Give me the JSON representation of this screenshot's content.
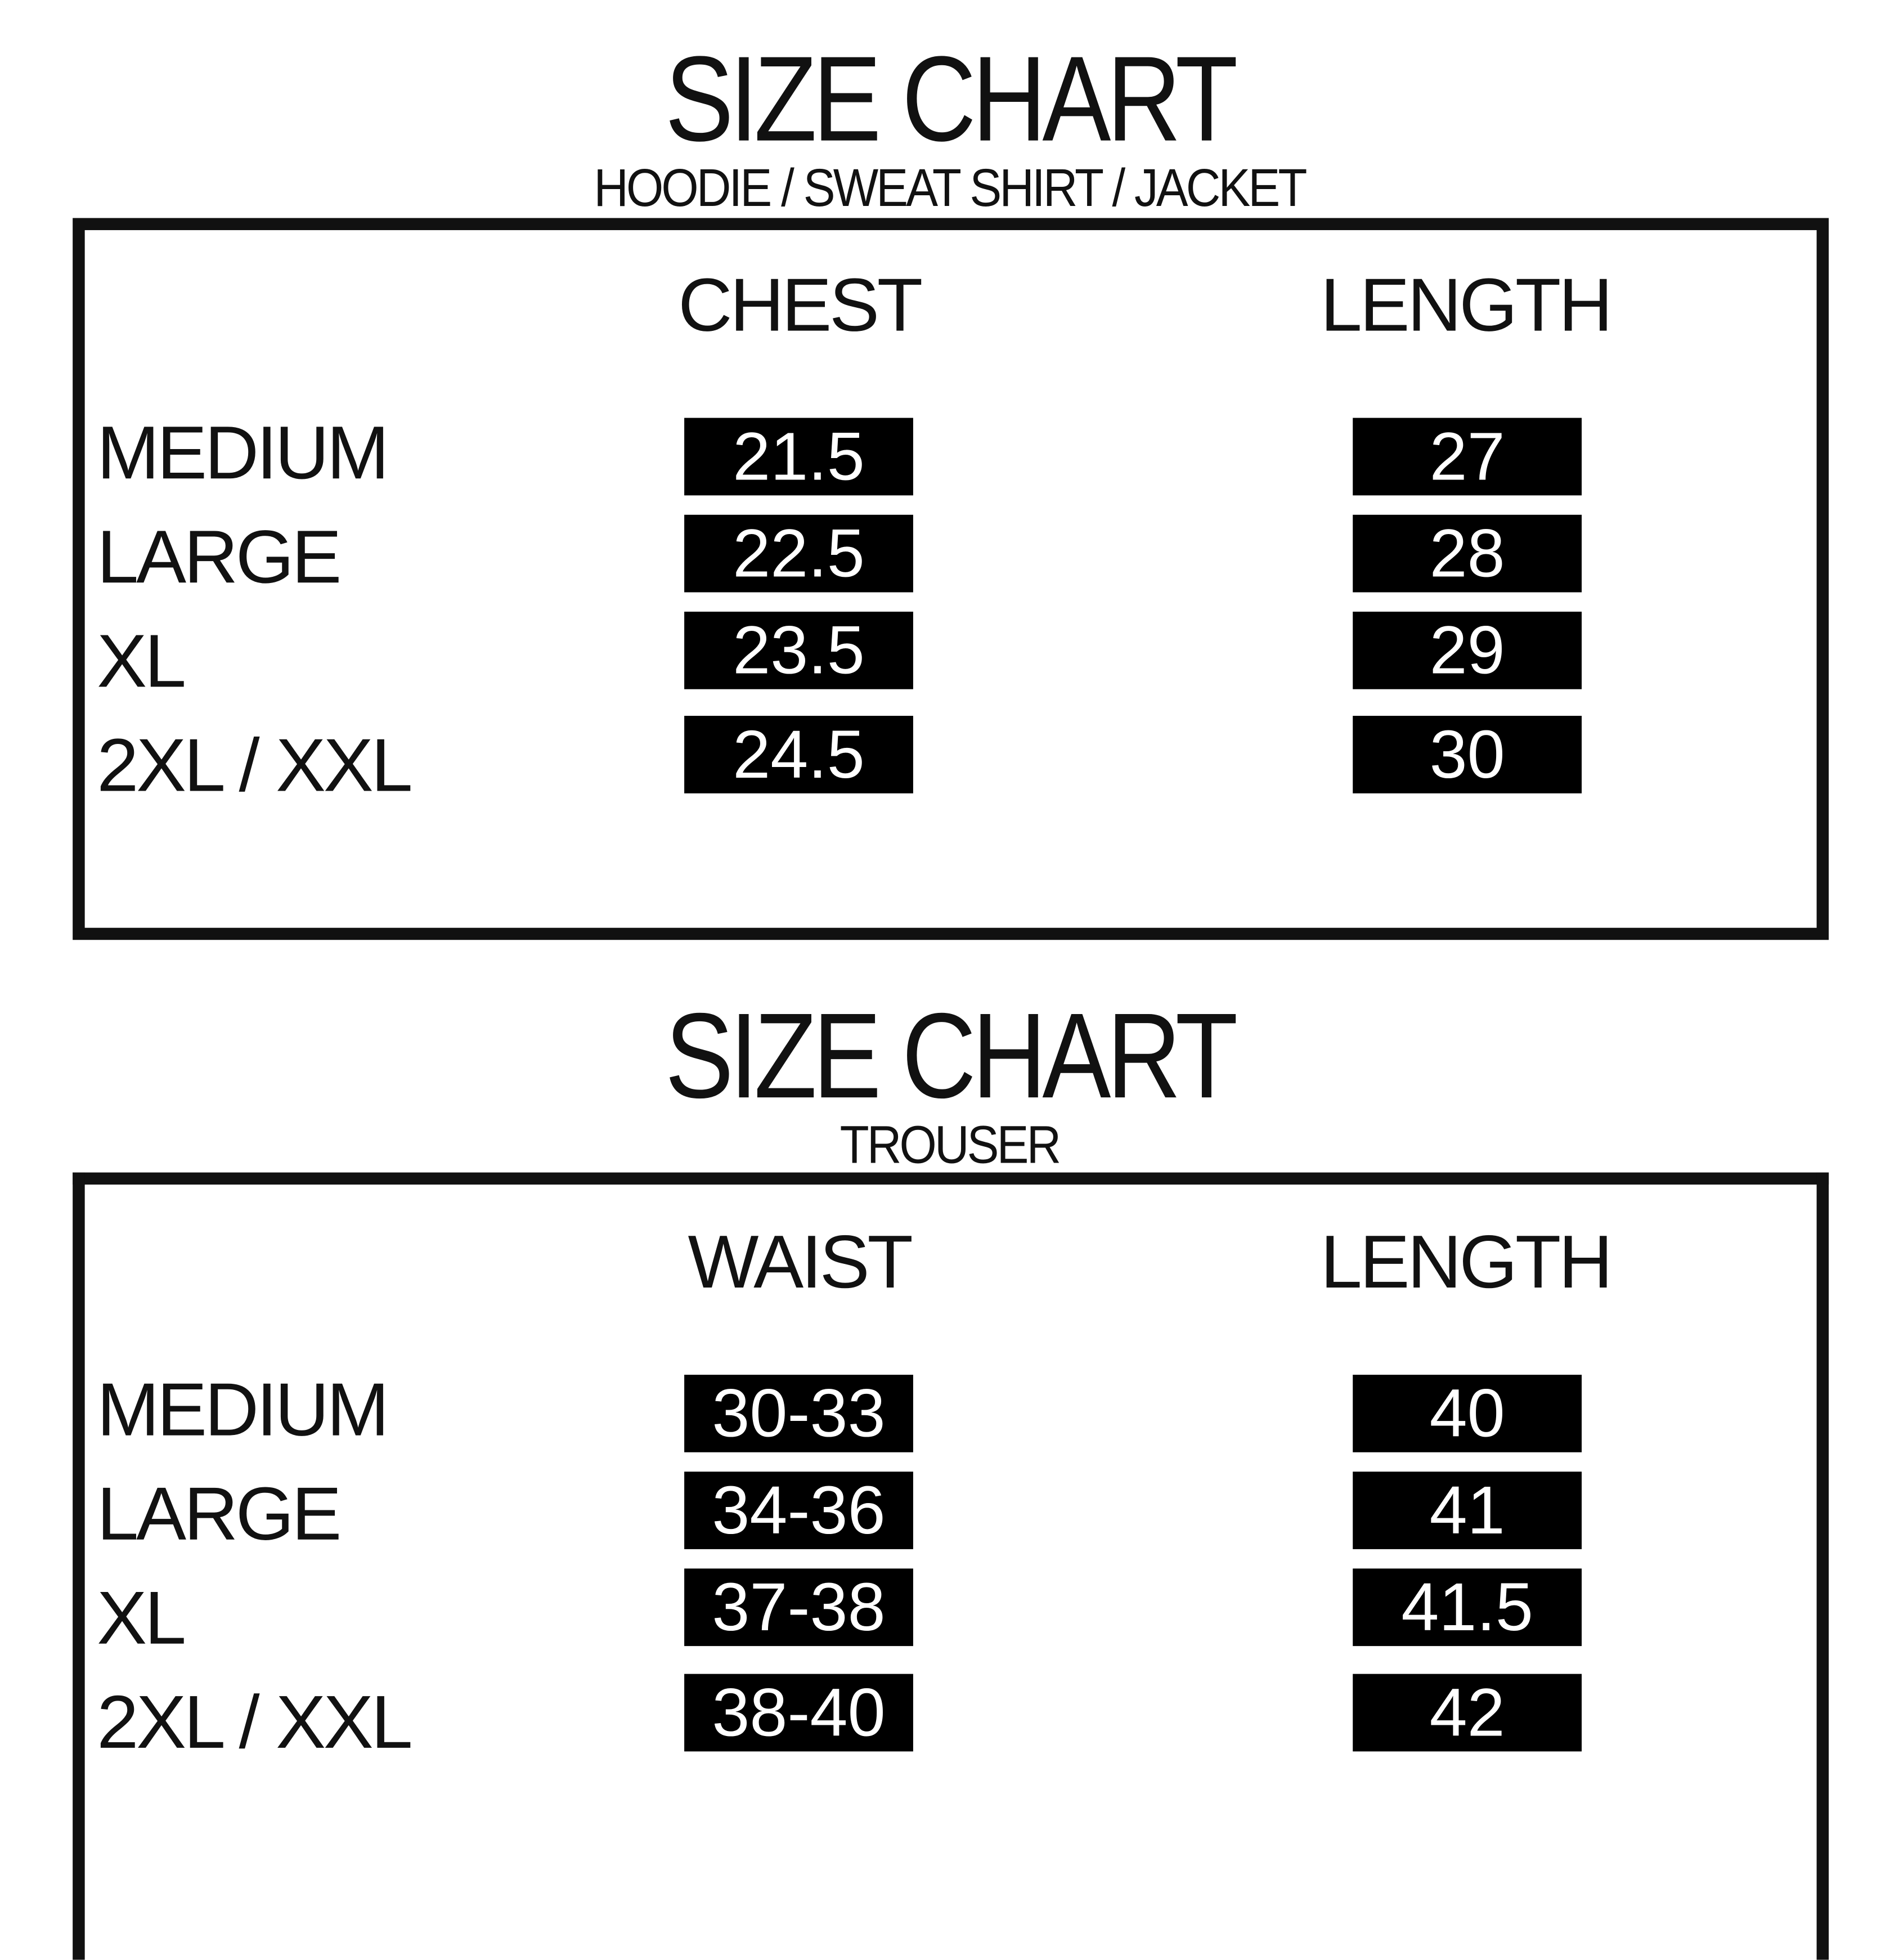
{
  "charts": [
    {
      "title": "SIZE CHART",
      "subtitle": "HOODIE / SWEAT SHIRT / JACKET",
      "columns": [
        "CHEST",
        "LENGTH"
      ],
      "rows": [
        {
          "size": "MEDIUM",
          "values": [
            "21.5",
            "27"
          ]
        },
        {
          "size": "LARGE",
          "values": [
            "22.5",
            "28"
          ]
        },
        {
          "size": "XL",
          "values": [
            "23.5",
            "29"
          ]
        },
        {
          "size": "2XL / XXL",
          "values": [
            "24.5",
            "30"
          ]
        }
      ]
    },
    {
      "title": "SIZE CHART",
      "subtitle": "TROUSER",
      "columns": [
        "WAIST",
        "LENGTH"
      ],
      "rows": [
        {
          "size": "MEDIUM",
          "values": [
            "30-33",
            "40"
          ]
        },
        {
          "size": "LARGE",
          "values": [
            "34-36",
            "41"
          ]
        },
        {
          "size": "XL",
          "values": [
            "37-38",
            "41.5"
          ]
        },
        {
          "size": "2XL / XXL",
          "values": [
            "38-40",
            "42"
          ]
        }
      ]
    }
  ]
}
